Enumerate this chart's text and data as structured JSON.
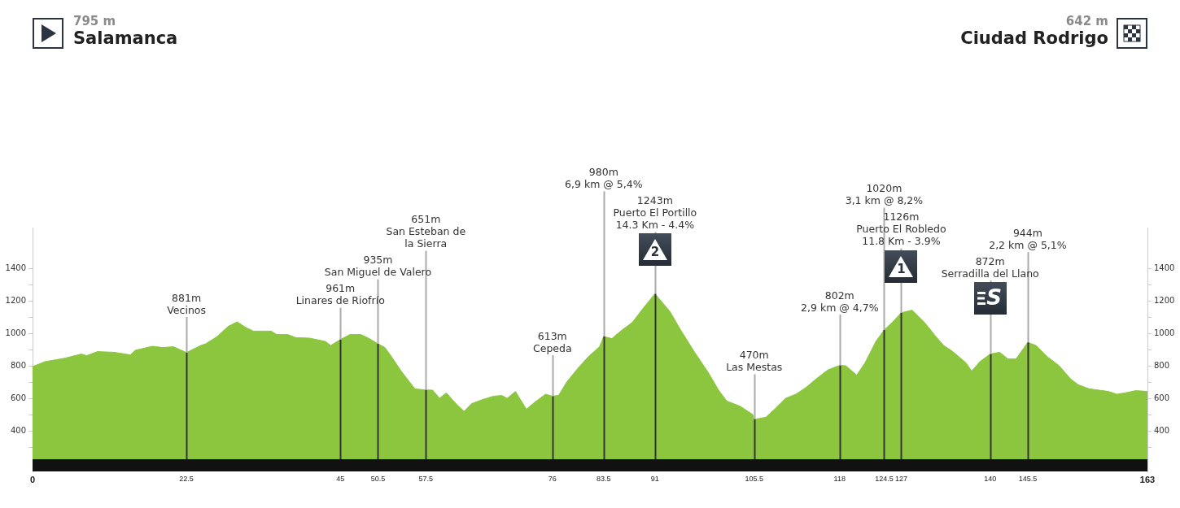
{
  "chart_data": {
    "type": "area",
    "color": "#8cc63f",
    "x": [
      0,
      1.8,
      4.8,
      7.1,
      7.9,
      9.5,
      11.9,
      14.3,
      15,
      17.5,
      19,
      20.6,
      22.2,
      22.5,
      24.6,
      25.3,
      27,
      28.6,
      29.9,
      31.3,
      32.3,
      34.9,
      35.7,
      37.3,
      38.5,
      40.5,
      42.8,
      43.6,
      45,
      46.4,
      48,
      49.2,
      50.5,
      51.5,
      52.3,
      53.9,
      55.9,
      57.5,
      58.5,
      59.5,
      60.5,
      62.1,
      63.1,
      64.2,
      65.8,
      67.4,
      68.6,
      69.4,
      70.6,
      72.2,
      73.4,
      75,
      76,
      76.9,
      78.1,
      79.7,
      81.3,
      82.9,
      83.5,
      84.7,
      86.1,
      87.7,
      89.2,
      90.8,
      91,
      93.2,
      94.8,
      96.8,
      98.8,
      100.3,
      101.5,
      103.5,
      105.3,
      105.5,
      107.2,
      108.5,
      110.1,
      111.6,
      113.1,
      114.5,
      116.3,
      118,
      118.9,
      120.5,
      121.7,
      123.3,
      124.5,
      125.7,
      127,
      128.6,
      130.4,
      132,
      133.2,
      134.4,
      136.5,
      137.3,
      138.5,
      140,
      141.4,
      142.6,
      143.8,
      145.5,
      146.7,
      148.3,
      150.1,
      151.8,
      152.9,
      154.5,
      157.3,
      158.5,
      159.7,
      161.3,
      163
    ],
    "values": [
      795,
      825,
      847,
      872,
      862,
      887,
      883,
      867,
      895,
      920,
      912,
      917,
      887,
      881,
      925,
      935,
      980,
      1042,
      1070,
      1033,
      1013,
      1013,
      992,
      992,
      973,
      970,
      950,
      925,
      961,
      992,
      992,
      968,
      935,
      913,
      867,
      767,
      658,
      651,
      650,
      600,
      633,
      558,
      520,
      567,
      592,
      613,
      617,
      600,
      642,
      533,
      575,
      625,
      613,
      617,
      700,
      783,
      858,
      917,
      980,
      967,
      1017,
      1067,
      1150,
      1233,
      1243,
      1133,
      1017,
      883,
      758,
      650,
      583,
      550,
      500,
      470,
      483,
      533,
      600,
      625,
      667,
      717,
      775,
      802,
      800,
      742,
      817,
      950,
      1020,
      1067,
      1126,
      1142,
      1067,
      983,
      925,
      892,
      817,
      767,
      825,
      872,
      883,
      842,
      842,
      944,
      925,
      858,
      800,
      717,
      683,
      658,
      642,
      625,
      633,
      647,
      642
    ],
    "xlim": [
      0,
      163
    ],
    "xticks": [
      0,
      22.5,
      45,
      50.5,
      57.5,
      76,
      83.5,
      91,
      105.5,
      118,
      124.5,
      127,
      140,
      145.5,
      163
    ],
    "ylim": [
      150,
      1650
    ],
    "yticks": [
      {
        "value": 300,
        "label": null
      },
      400,
      {
        "value": 500,
        "label": null
      },
      600,
      {
        "value": 700,
        "label": null
      },
      800,
      {
        "value": 900,
        "label": null
      },
      1000,
      {
        "value": 1100,
        "label": null
      },
      1200,
      {
        "value": 1300,
        "label": null
      },
      1400
    ],
    "y2lim": [
      150,
      1650
    ],
    "y2ticks": [
      {
        "value": 300,
        "label": null
      },
      400,
      {
        "value": 500,
        "label": null
      },
      600,
      {
        "value": 700,
        "label": null
      },
      800,
      {
        "value": 900,
        "label": null
      },
      1000,
      {
        "value": 1100,
        "label": null
      },
      1200,
      {
        "value": 1300,
        "label": null
      },
      1400
    ],
    "bands": [
      {
        "axis": "y",
        "from": 150,
        "to": 225,
        "color": "#111111"
      }
    ],
    "ref_lines": [
      {
        "axis": "x",
        "value": 22.5,
        "label": "881m\nVecinos"
      },
      {
        "axis": "x",
        "value": 45,
        "label": "961m\nLinares de Riofrío"
      },
      {
        "axis": "x",
        "value": 50.5,
        "label": "935m\nSan Miguel de Valero"
      },
      {
        "axis": "x",
        "value": 57.5,
        "label": "651m\nSan Esteban de\nla Sierra"
      },
      {
        "axis": "x",
        "value": 76,
        "label": "613m\nCepeda"
      },
      {
        "axis": "x",
        "value": 83.5,
        "label": "980m\n6,9 km @ 5,4%"
      },
      {
        "axis": "x",
        "value": 91,
        "label": "1243m\nPuerto El Portillo\n14.3 Km - 4.4%"
      },
      {
        "axis": "x",
        "value": 105.5,
        "label": "470m\nLas Mestas"
      },
      {
        "axis": "x",
        "value": 118,
        "label": "802m\n2,9 km @ 4,7%"
      },
      {
        "axis": "x",
        "value": 124.5,
        "label": "1020m\n3,1 km @ 8,2%"
      },
      {
        "axis": "x",
        "value": 127,
        "label": "1126m\nPuerto El Robledo\n11.8 Km - 3.9%"
      },
      {
        "axis": "x",
        "value": 140,
        "label": "872m\nSerradilla del Llano"
      },
      {
        "axis": "x",
        "value": 145.5,
        "label": "944m\n2,2 km @ 5,1%"
      }
    ],
    "annotations": [
      "795 m\nSalamanca",
      "642 m\nCiudad Rodrigo",
      {
        "text": "2",
        "x": 91,
        "y": 1243
      },
      {
        "text": "1",
        "x": 127,
        "y": 1126
      },
      {
        "text": "S",
        "x": 140,
        "y": 872
      }
    ]
  }
}
